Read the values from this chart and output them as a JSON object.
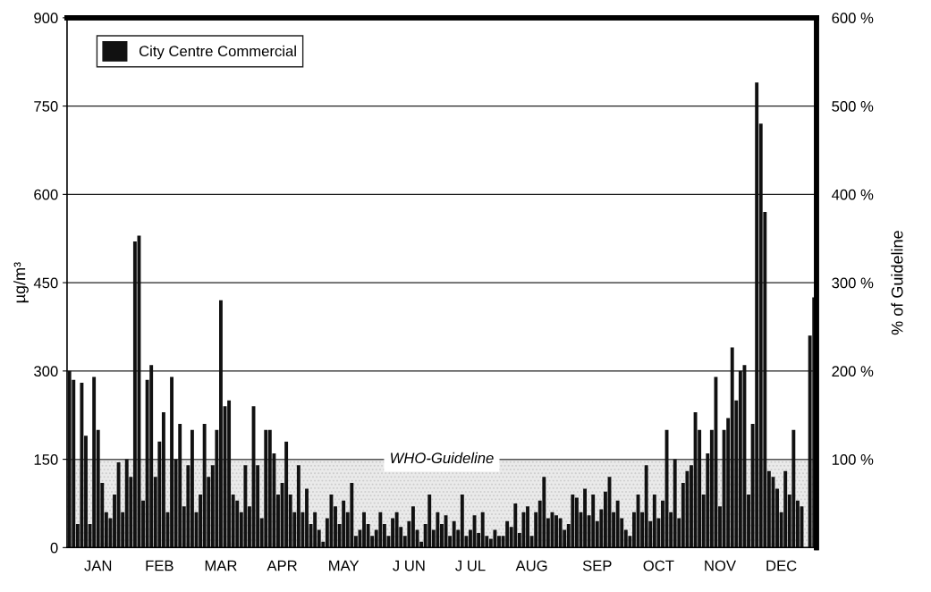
{
  "chart_data": {
    "type": "bar",
    "ylabel": "µg/m³",
    "y2label": "% of Guideline",
    "categories": [
      null,
      null,
      null,
      null,
      null,
      null,
      null,
      "JAN",
      null,
      null,
      null,
      null,
      null,
      null,
      null,
      null,
      null,
      null,
      null,
      null,
      null,
      null,
      "FEB",
      null,
      null,
      null,
      null,
      null,
      null,
      null,
      null,
      null,
      null,
      null,
      null,
      null,
      null,
      "MAR",
      null,
      null,
      null,
      null,
      null,
      null,
      null,
      null,
      null,
      null,
      null,
      null,
      null,
      null,
      "APR",
      null,
      null,
      null,
      null,
      null,
      null,
      null,
      null,
      null,
      null,
      null,
      null,
      null,
      null,
      "MAY",
      null,
      null,
      null,
      null,
      null,
      null,
      null,
      null,
      null,
      null,
      null,
      null,
      null,
      null,
      null,
      "J UN",
      null,
      null,
      null,
      null,
      null,
      null,
      null,
      null,
      null,
      null,
      null,
      null,
      null,
      null,
      "J UL",
      null,
      null,
      null,
      null,
      null,
      null,
      null,
      null,
      null,
      null,
      null,
      null,
      null,
      null,
      "AUG",
      null,
      null,
      null,
      null,
      null,
      null,
      null,
      null,
      null,
      null,
      null,
      null,
      null,
      null,
      null,
      "SEP",
      null,
      null,
      null,
      null,
      null,
      null,
      null,
      null,
      null,
      null,
      null,
      null,
      null,
      null,
      "OCT",
      null,
      null,
      null,
      null,
      null,
      null,
      null,
      null,
      null,
      null,
      null,
      null,
      null,
      null,
      "NOV",
      null,
      null,
      null,
      null,
      null,
      null,
      null,
      null,
      null,
      null,
      null,
      null,
      null,
      null,
      "DEC",
      null,
      null,
      null,
      null,
      null,
      null,
      null,
      null
    ],
    "series": [
      {
        "name": "City Centre Commercial",
        "color": "#111111",
        "values": [
          300,
          285,
          40,
          280,
          190,
          40,
          290,
          200,
          110,
          60,
          50,
          90,
          145,
          60,
          150,
          120,
          520,
          530,
          80,
          285,
          310,
          120,
          180,
          230,
          60,
          290,
          150,
          210,
          70,
          140,
          200,
          60,
          90,
          210,
          120,
          140,
          200,
          420,
          240,
          250,
          90,
          80,
          60,
          140,
          70,
          240,
          140,
          50,
          200,
          200,
          160,
          90,
          110,
          180,
          90,
          60,
          140,
          60,
          100,
          40,
          60,
          30,
          10,
          50,
          90,
          70,
          40,
          80,
          60,
          110,
          20,
          30,
          60,
          40,
          20,
          30,
          60,
          40,
          20,
          50,
          60,
          35,
          20,
          45,
          70,
          30,
          10,
          40,
          90,
          30,
          60,
          40,
          55,
          20,
          45,
          30,
          90,
          20,
          30,
          55,
          25,
          60,
          20,
          15,
          30,
          20,
          20,
          45,
          35,
          75,
          25,
          60,
          70,
          20,
          60,
          80,
          120,
          50,
          60,
          55,
          50,
          30,
          40,
          90,
          85,
          60,
          100,
          55,
          90,
          45,
          65,
          95,
          120,
          60,
          80,
          50,
          30,
          20,
          60,
          90,
          60,
          140,
          45,
          90,
          50,
          80,
          200,
          60,
          150,
          50,
          110,
          130,
          140,
          230,
          200,
          90,
          160,
          200,
          290,
          70,
          200,
          220,
          340,
          250,
          300,
          310,
          90,
          210,
          790,
          720,
          570,
          130,
          120,
          100,
          60,
          130,
          90,
          200,
          80,
          70,
          0,
          360,
          425
        ]
      }
    ],
    "ylim": [
      0,
      900
    ],
    "yticks": [
      0,
      150,
      300,
      450,
      600,
      750,
      900
    ],
    "y2lim": [
      0,
      600
    ],
    "y2ticks": [
      {
        "value": 100,
        "label": "100 %"
      },
      {
        "value": 200,
        "label": "200 %"
      },
      {
        "value": 300,
        "label": "300 %"
      },
      {
        "value": 400,
        "label": "400 %"
      },
      {
        "value": 500,
        "label": "500 %"
      },
      {
        "value": 600,
        "label": "600 %"
      }
    ],
    "bands": [
      {
        "axis": "y",
        "from": 0,
        "to": 150,
        "color": "#dcdcdc"
      }
    ],
    "ref_lines": [
      {
        "axis": "y",
        "value": 150,
        "label": "WHO-Guideline",
        "color": "#555555"
      }
    ],
    "grid": "y",
    "legend": "top left"
  }
}
